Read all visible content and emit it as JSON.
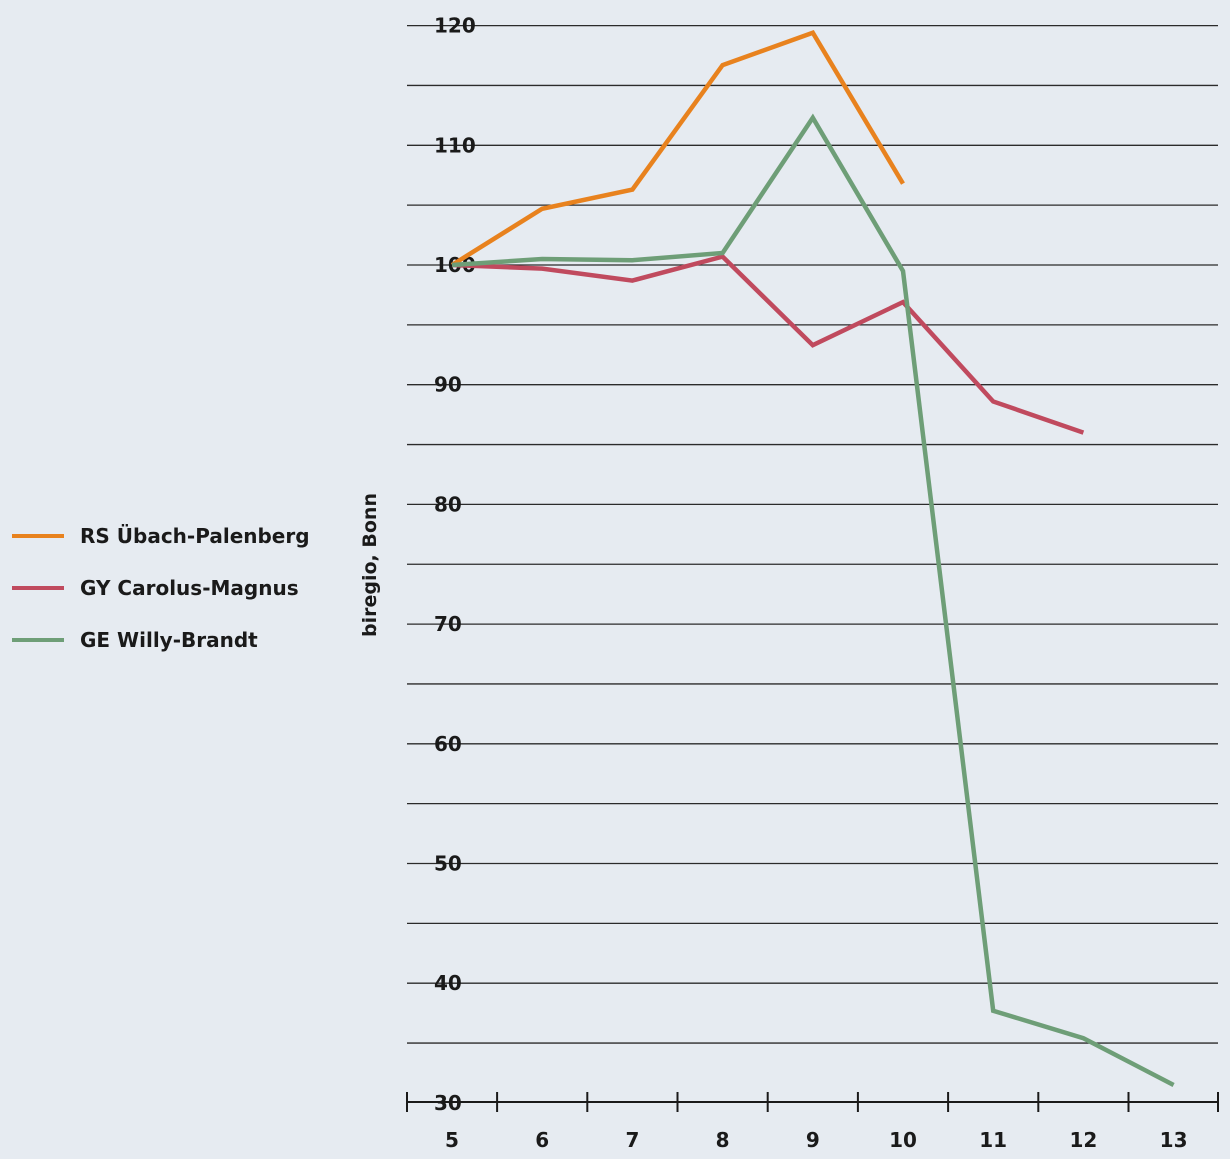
{
  "chart_data": {
    "type": "line",
    "title": "",
    "xlabel": "",
    "ylabel": "biregio, Bonn",
    "x": [
      5,
      6,
      7,
      8,
      9,
      10,
      11,
      12,
      13
    ],
    "xlim": [
      5,
      13
    ],
    "ylim": [
      30,
      122
    ],
    "yticks": [
      30,
      40,
      50,
      60,
      70,
      80,
      90,
      100,
      110,
      120
    ],
    "grid": true,
    "legend_position": "left",
    "series": [
      {
        "name": "RS Übach-Palenberg",
        "color": "#e8821e",
        "values": [
          100,
          104.7,
          106.3,
          116.7,
          119.4,
          106.8,
          null,
          null,
          null
        ]
      },
      {
        "name": "GY Carolus-Magnus",
        "color": "#c04a5e",
        "values": [
          100,
          99.7,
          98.7,
          100.7,
          93.3,
          96.9,
          88.6,
          86.0,
          null
        ]
      },
      {
        "name": "GE Willy-Brandt",
        "color": "#6e9e77",
        "values": [
          100,
          100.5,
          100.4,
          101.0,
          112.3,
          99.5,
          37.7,
          35.4,
          31.5
        ]
      }
    ]
  }
}
